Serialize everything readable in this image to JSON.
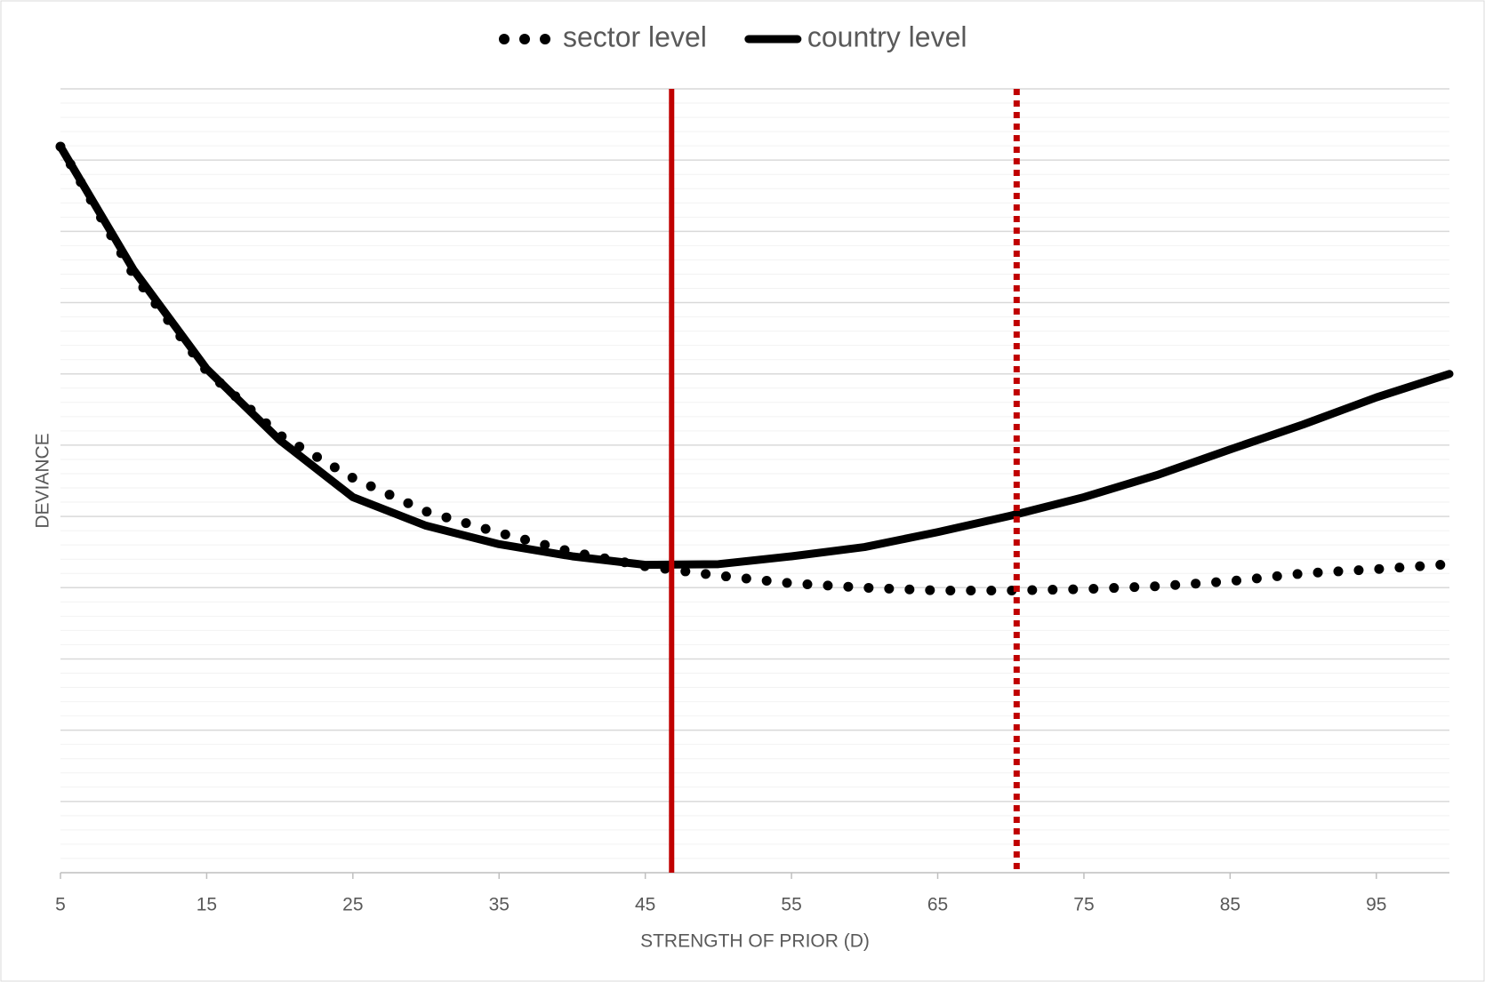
{
  "chart_data": {
    "type": "line",
    "x_label": "STRENGTH OF PRIOR (D)",
    "y_label": "DEVIANCE",
    "x": [
      5,
      10,
      15,
      20,
      25,
      30,
      35,
      40,
      45,
      50,
      55,
      60,
      65,
      70,
      75,
      80,
      85,
      90,
      95,
      100
    ],
    "series": [
      {
        "name": "sector level",
        "color": "#000000",
        "style": "dotted",
        "values": [
          10.19,
          8.39,
          7.04,
          6.14,
          5.54,
          5.07,
          4.77,
          4.5,
          4.3,
          4.17,
          4.06,
          4.0,
          3.96,
          3.96,
          3.98,
          4.02,
          4.09,
          4.2,
          4.26,
          4.33
        ]
      },
      {
        "name": "country level",
        "color": "#000000",
        "style": "solid",
        "values": [
          10.19,
          8.46,
          7.07,
          6.07,
          5.27,
          4.87,
          4.61,
          4.44,
          4.32,
          4.33,
          4.44,
          4.57,
          4.78,
          5.01,
          5.27,
          5.58,
          5.94,
          6.29,
          6.67,
          7.0
        ]
      }
    ],
    "vlines": [
      {
        "x": 46.8,
        "color": "#c00000",
        "style": "solid"
      },
      {
        "x": 70.4,
        "color": "#c00000",
        "style": "dotted"
      }
    ],
    "xlim": [
      5,
      100
    ],
    "xticks": [
      5,
      15,
      25,
      35,
      45,
      55,
      65,
      75,
      85,
      95
    ],
    "ylim": [
      0,
      11
    ],
    "yticks": [
      0,
      1,
      2,
      3,
      4,
      5,
      6,
      7,
      8,
      9,
      10,
      11
    ],
    "grid": true,
    "minor_grid": true,
    "legend": "top"
  }
}
